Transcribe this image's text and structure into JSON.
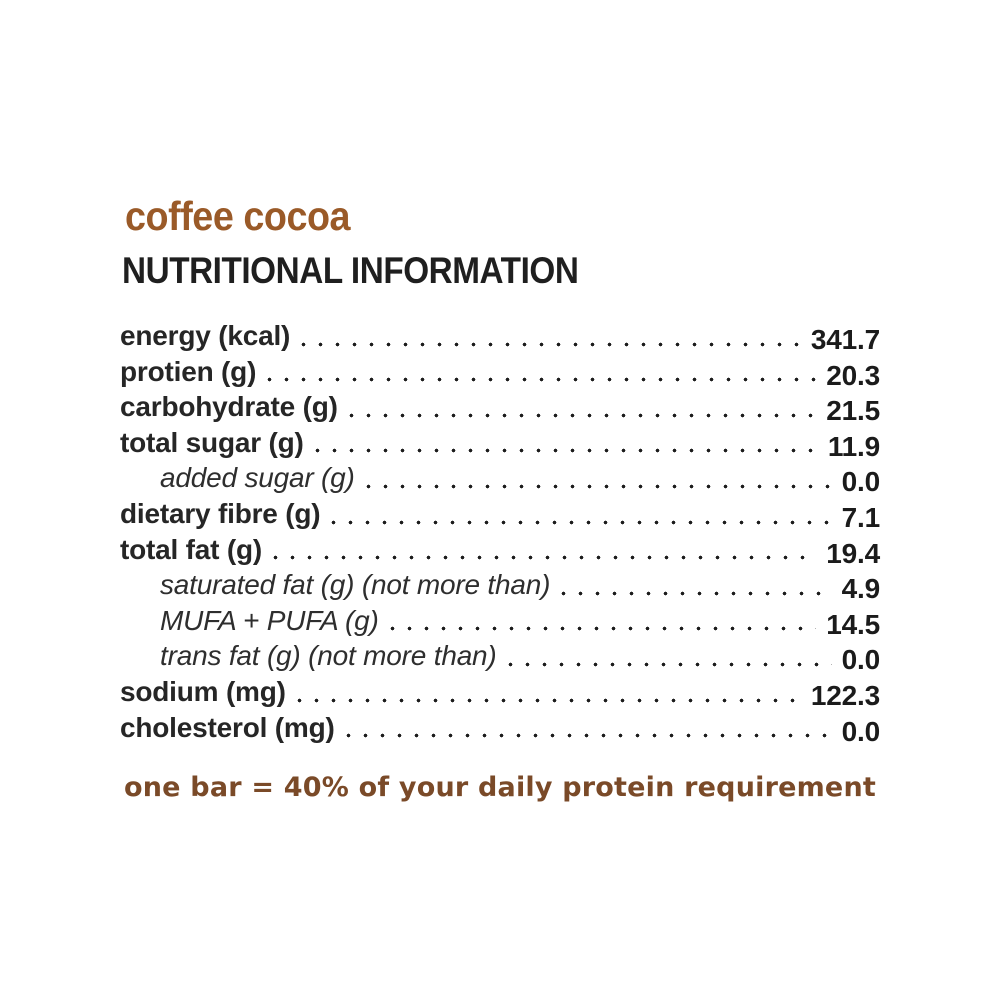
{
  "header": {
    "flavor": "coffee cocoa",
    "title": "NUTRITIONAL INFORMATION"
  },
  "table": {
    "rows": [
      {
        "label": "energy (kcal)",
        "value": "341.7",
        "indent": false
      },
      {
        "label": "protien (g)",
        "value": "20.3",
        "indent": false
      },
      {
        "label": "carbohydrate (g)",
        "value": "21.5",
        "indent": false
      },
      {
        "label": "total sugar (g)",
        "value": "11.9",
        "indent": false
      },
      {
        "label": "added sugar (g)",
        "value": "0.0",
        "indent": true
      },
      {
        "label": "dietary fibre (g)",
        "value": "7.1",
        "indent": false
      },
      {
        "label": "total fat (g)",
        "value": "19.4",
        "indent": false
      },
      {
        "label": "saturated fat (g) (not more than)",
        "value": "4.9",
        "indent": true
      },
      {
        "label": "MUFA + PUFA (g)",
        "value": "14.5",
        "indent": true
      },
      {
        "label": "trans fat (g) (not more than)",
        "value": "0.0",
        "indent": true
      },
      {
        "label": "sodium (mg)",
        "value": "122.3",
        "indent": false
      },
      {
        "label": "cholesterol (mg)",
        "value": "0.0",
        "indent": false
      }
    ]
  },
  "footer": {
    "note": "one bar = 40% of your daily protein requirement"
  },
  "colors": {
    "flavor_brown": "#9a5a28",
    "footer_brown": "#7a4a28",
    "text_dark": "#1f1f1f",
    "background": "#ffffff"
  }
}
